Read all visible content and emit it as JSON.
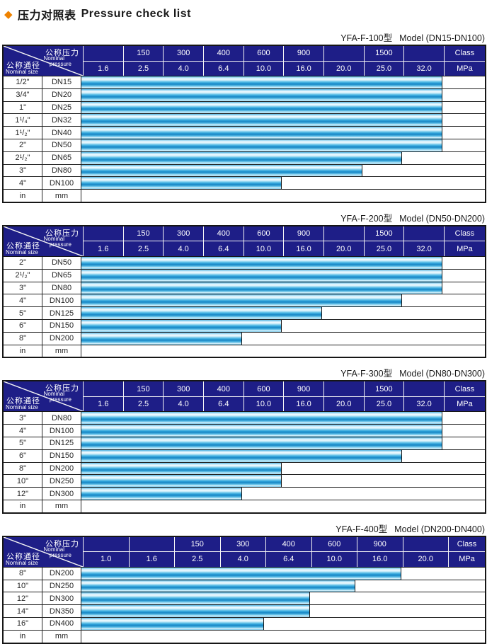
{
  "page": {
    "diamond": "◆",
    "title_zh": "压力对照表",
    "title_en": "Pressure check list"
  },
  "corner": {
    "pressure_zh": "公称压力",
    "pressure_en_line1": "Nominal",
    "pressure_en_line2": "pressure",
    "size_zh": "公称通径",
    "size_en": "Nominal size"
  },
  "colors": {
    "diamond_orange": "#ee8200",
    "header_navy": "#1e1e87",
    "bar_cyan": "#29a8df",
    "bar_highlight": "#f3fbff",
    "grid_black": "#222222"
  },
  "tables": [
    {
      "model": "YFA-F-100型",
      "range": "Model (DN15-DN100)",
      "class_cells": [
        "",
        "150",
        "300",
        "400",
        "600",
        "900",
        "",
        "1500",
        ""
      ],
      "class_label": "Class",
      "mpa_cells": [
        "1.6",
        "2.5",
        "4.0",
        "6.4",
        "10.0",
        "16.0",
        "20.0",
        "25.0",
        "32.0"
      ],
      "mpa_label": "MPa",
      "rows": [
        {
          "size": "1/2\"",
          "dn": "DN15",
          "cols": 9
        },
        {
          "size": "3/4\"",
          "dn": "DN20",
          "cols": 9
        },
        {
          "size": "1\"",
          "dn": "DN25",
          "cols": 9
        },
        {
          "size": "1¹/₄\"",
          "dn": "DN32",
          "cols": 9
        },
        {
          "size": "1¹/₂\"",
          "dn": "DN40",
          "cols": 9
        },
        {
          "size": "2\"",
          "dn": "DN50",
          "cols": 9
        },
        {
          "size": "2¹/₂\"",
          "dn": "DN65",
          "cols": 8
        },
        {
          "size": "3\"",
          "dn": "DN80",
          "cols": 7
        },
        {
          "size": "4\"",
          "dn": "DN100",
          "cols": 5
        }
      ],
      "unit_row": {
        "size": "in",
        "dn": "mm"
      }
    },
    {
      "model": "YFA-F-200型",
      "range": "Model (DN50-DN200)",
      "class_cells": [
        "",
        "150",
        "300",
        "400",
        "600",
        "900",
        "",
        "1500",
        ""
      ],
      "class_label": "Class",
      "mpa_cells": [
        "1.6",
        "2.5",
        "4.0",
        "6.4",
        "10.0",
        "16.0",
        "20.0",
        "25.0",
        "32.0"
      ],
      "mpa_label": "MPa",
      "rows": [
        {
          "size": "2\"",
          "dn": "DN50",
          "cols": 9
        },
        {
          "size": "2¹/₂\"",
          "dn": "DN65",
          "cols": 9
        },
        {
          "size": "3\"",
          "dn": "DN80",
          "cols": 9
        },
        {
          "size": "4\"",
          "dn": "DN100",
          "cols": 8
        },
        {
          "size": "5\"",
          "dn": "DN125",
          "cols": 6
        },
        {
          "size": "6\"",
          "dn": "DN150",
          "cols": 5
        },
        {
          "size": "8\"",
          "dn": "DN200",
          "cols": 4
        }
      ],
      "unit_row": {
        "size": "in",
        "dn": "mm"
      }
    },
    {
      "model": "YFA-F-300型",
      "range": "Model (DN80-DN300)",
      "class_cells": [
        "",
        "150",
        "300",
        "400",
        "600",
        "900",
        "",
        "1500",
        ""
      ],
      "class_label": "Class",
      "mpa_cells": [
        "1.6",
        "2.5",
        "4.0",
        "6.4",
        "10.0",
        "16.0",
        "20.0",
        "25.0",
        "32.0"
      ],
      "mpa_label": "MPa",
      "rows": [
        {
          "size": "3\"",
          "dn": "DN80",
          "cols": 9
        },
        {
          "size": "4\"",
          "dn": "DN100",
          "cols": 9
        },
        {
          "size": "5\"",
          "dn": "DN125",
          "cols": 9
        },
        {
          "size": "6\"",
          "dn": "DN150",
          "cols": 8
        },
        {
          "size": "8\"",
          "dn": "DN200",
          "cols": 5
        },
        {
          "size": "10\"",
          "dn": "DN250",
          "cols": 5
        },
        {
          "size": "12\"",
          "dn": "DN300",
          "cols": 4
        }
      ],
      "unit_row": {
        "size": "in",
        "dn": "mm"
      }
    },
    {
      "model": "YFA-F-400型",
      "range": "Model (DN200-DN400)",
      "class_cells": [
        "",
        "",
        "150",
        "300",
        "400",
        "600",
        "900",
        ""
      ],
      "class_label": "Class",
      "mpa_cells": [
        "1.0",
        "1.6",
        "2.5",
        "4.0",
        "6.4",
        "10.0",
        "16.0",
        "20.0"
      ],
      "mpa_label": "MPa",
      "rows": [
        {
          "size": "8\"",
          "dn": "DN200",
          "cols": 7
        },
        {
          "size": "10\"",
          "dn": "DN250",
          "cols": 6
        },
        {
          "size": "12\"",
          "dn": "DN300",
          "cols": 5
        },
        {
          "size": "14\"",
          "dn": "DN350",
          "cols": 5
        },
        {
          "size": "16\"",
          "dn": "DN400",
          "cols": 4
        }
      ],
      "unit_row": {
        "size": "in",
        "dn": "mm"
      }
    }
  ]
}
